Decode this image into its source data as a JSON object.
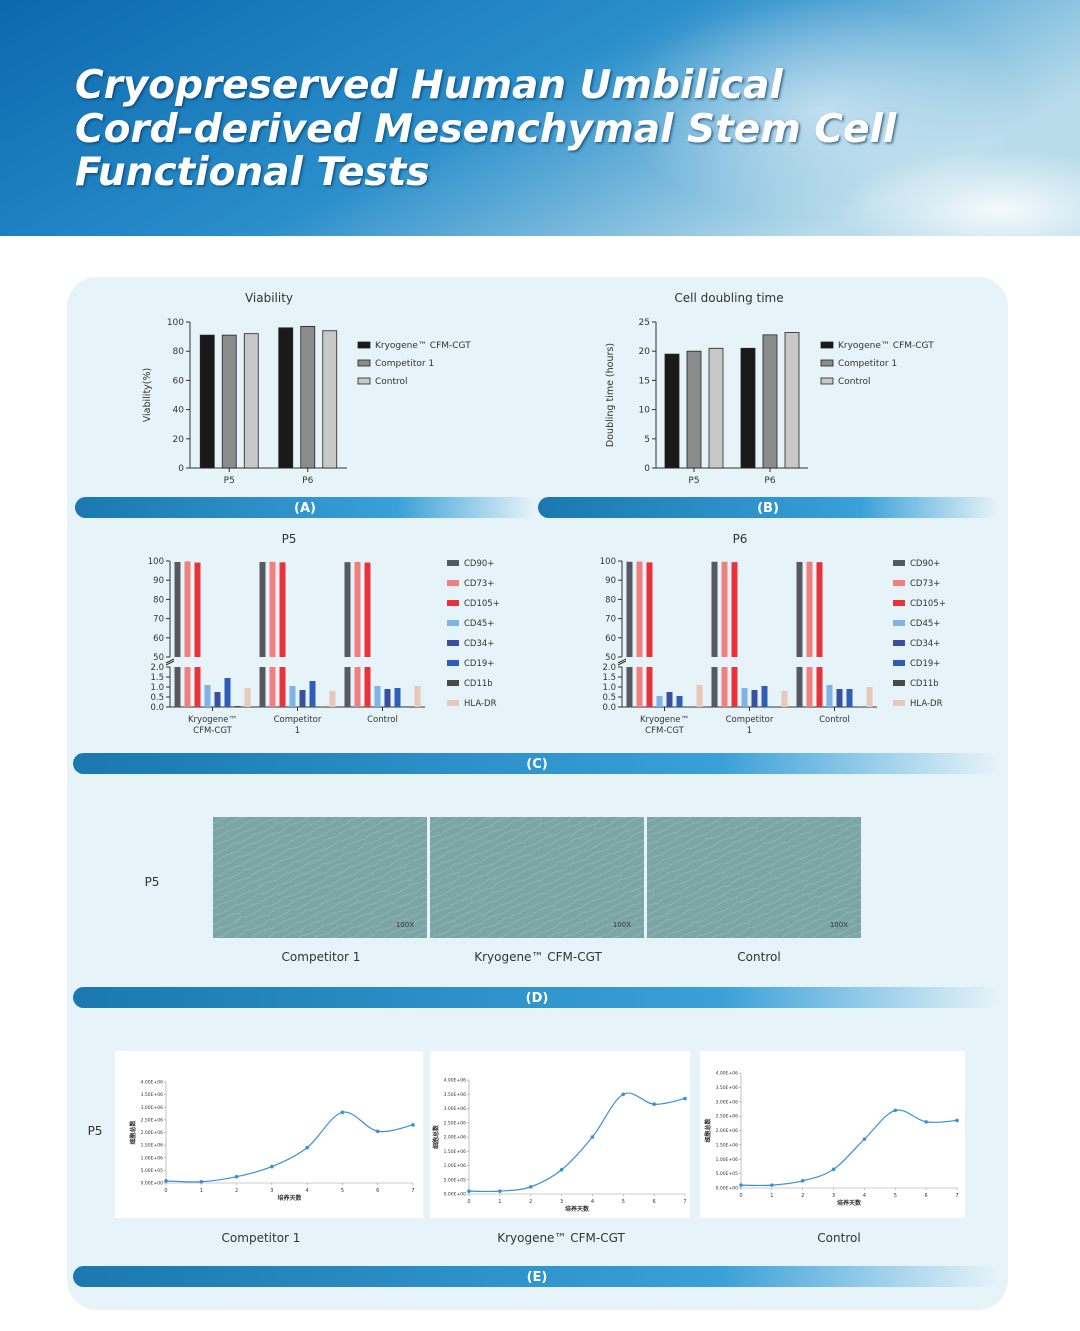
{
  "header": {
    "title_lines": [
      "Cryopreserved Human Umbilical",
      "Cord-derived Mesenchymal Stem Cell",
      "Functional Tests"
    ]
  },
  "panel_labels": [
    "(A)",
    "(B)",
    "(C)",
    "(D)",
    "(E)"
  ],
  "micrographs": {
    "row_label": "P5",
    "images": [
      {
        "caption": "Competitor 1",
        "magnification": "100X"
      },
      {
        "caption": "Kryogene™ CFM-CGT",
        "magnification": "100X"
      },
      {
        "caption": "Control",
        "magnification": "100X"
      }
    ]
  },
  "growth_curves": {
    "row_label": "P5"
  },
  "chart_data": [
    {
      "type": "bar",
      "title": "Viability",
      "y_label": "Viability(%)",
      "categories": [
        "P5",
        "P6"
      ],
      "series": [
        {
          "name": "Kryogene™ CFM-CGT",
          "color": "#1a1a1a",
          "values": [
            91,
            96
          ]
        },
        {
          "name": "Competitor 1",
          "color": "#8c8c8c",
          "values": [
            91,
            97
          ]
        },
        {
          "name": "Control",
          "color": "#c8c8c8",
          "values": [
            92,
            94
          ]
        }
      ],
      "ylim": [
        0,
        100
      ],
      "yticks": [
        0,
        20,
        40,
        60,
        80,
        100
      ]
    },
    {
      "type": "bar",
      "title": "Cell doubling time",
      "y_label": "Doubling time (hours)",
      "categories": [
        "P5",
        "P6"
      ],
      "series": [
        {
          "name": "Kryogene™ CFM-CGT",
          "color": "#1a1a1a",
          "values": [
            19.5,
            20.5
          ]
        },
        {
          "name": "Competitor 1",
          "color": "#8c8c8c",
          "values": [
            20,
            22.8
          ]
        },
        {
          "name": "Control",
          "color": "#c8c8c8",
          "values": [
            20.5,
            23.2
          ]
        }
      ],
      "ylim": [
        0,
        25
      ],
      "yticks": [
        0,
        5,
        10,
        15,
        20,
        25
      ]
    },
    {
      "type": "bar",
      "title": "P5",
      "categories": [
        "Kryogene™ CFM-CGT",
        "Competitor 1",
        "Control"
      ],
      "series": [
        {
          "name": "CD90+",
          "color": "#555a60",
          "values": [
            99.5,
            99.5,
            99.4
          ]
        },
        {
          "name": "CD73+",
          "color": "#f08080",
          "values": [
            99.8,
            99.6,
            99.5
          ]
        },
        {
          "name": "CD105+",
          "color": "#e8333a",
          "values": [
            99.2,
            99.3,
            99.2
          ]
        },
        {
          "name": "CD45+",
          "color": "#7fb2e5",
          "values": [
            1.1,
            1.05,
            1.05
          ]
        },
        {
          "name": "CD34+",
          "color": "#3a4fa0",
          "values": [
            0.75,
            0.85,
            0.9
          ]
        },
        {
          "name": "CD19+",
          "color": "#2f5db8",
          "values": [
            1.45,
            1.3,
            0.95
          ]
        },
        {
          "name": "CD11b",
          "color": "#4a4a4a",
          "values": [
            0.05,
            0.02,
            0.03
          ]
        },
        {
          "name": "HLA-DR",
          "color": "#e8c8b8",
          "values": [
            0.95,
            0.8,
            1.05
          ]
        }
      ],
      "ylim": [
        0,
        100
      ],
      "axis_break": [
        2,
        50
      ],
      "yticks": [
        {
          "value": 0,
          "label": "0.0"
        },
        0.5,
        {
          "value": 1,
          "label": "1.0"
        },
        1.5,
        {
          "value": 2,
          "label": "2.0"
        },
        50,
        60,
        70,
        80,
        90,
        100
      ]
    },
    {
      "type": "bar",
      "title": "P6",
      "categories": [
        "Kryogene™ CFM-CGT",
        "Competitor 1",
        "Control"
      ],
      "series": [
        {
          "name": "CD90+",
          "color": "#555a60",
          "values": [
            99.6,
            99.6,
            99.5
          ]
        },
        {
          "name": "CD73+",
          "color": "#f08080",
          "values": [
            99.7,
            99.6,
            99.6
          ]
        },
        {
          "name": "CD105+",
          "color": "#e8333a",
          "values": [
            99.3,
            99.4,
            99.4
          ]
        },
        {
          "name": "CD45+",
          "color": "#7fb2e5",
          "values": [
            0.55,
            0.95,
            1.1
          ]
        },
        {
          "name": "CD34+",
          "color": "#3a4fa0",
          "values": [
            0.75,
            0.85,
            0.9
          ]
        },
        {
          "name": "CD19+",
          "color": "#2f5db8",
          "values": [
            0.55,
            1.05,
            0.9
          ]
        },
        {
          "name": "CD11b",
          "color": "#4a4a4a",
          "values": [
            0.02,
            0.02,
            0.02
          ]
        },
        {
          "name": "HLA-DR",
          "color": "#e8c8b8",
          "values": [
            1.1,
            0.8,
            1.0
          ]
        }
      ],
      "ylim": [
        0,
        100
      ],
      "axis_break": [
        2,
        50
      ],
      "yticks": [
        {
          "value": 0,
          "label": "0.0"
        },
        0.5,
        {
          "value": 1,
          "label": "1.0"
        },
        1.5,
        {
          "value": 2,
          "label": "2.0"
        },
        50,
        60,
        70,
        80,
        90,
        100
      ]
    },
    {
      "type": "line",
      "caption": "Competitor 1",
      "y_label": "细胞总数",
      "x_label": "培养天数",
      "color": "#3a8fd8",
      "x": [
        0,
        1,
        2,
        3,
        4,
        5,
        6,
        7
      ],
      "values": [
        80000,
        50000,
        250000,
        650000,
        1400000,
        2800000,
        2050000,
        2300000
      ],
      "xlim": [
        0,
        7
      ],
      "xticks": [
        0,
        1,
        2,
        3,
        4,
        5,
        6,
        7
      ],
      "ylim": [
        0,
        4000000
      ],
      "yticks": [
        {
          "value": 0,
          "label": "0.00E+00"
        },
        {
          "value": 500000,
          "label": "5.00E+05"
        },
        {
          "value": 1000000,
          "label": "1.00E+06"
        },
        {
          "value": 1500000,
          "label": "1.50E+06"
        },
        {
          "value": 2000000,
          "label": "2.00E+06"
        },
        {
          "value": 2500000,
          "label": "2.50E+06"
        },
        {
          "value": 3000000,
          "label": "3.00E+06"
        },
        {
          "value": 3500000,
          "label": "3.50E+06"
        },
        {
          "value": 4000000,
          "label": "4.00E+06"
        }
      ]
    },
    {
      "type": "line",
      "caption": "Kryogene™ CFM-CGT",
      "y_label": "细胞总数",
      "x_label": "培养天数",
      "color": "#3a8fd8",
      "x": [
        0,
        1,
        2,
        3,
        4,
        5,
        6,
        7
      ],
      "values": [
        100000,
        100000,
        250000,
        850000,
        2000000,
        3500000,
        3150000,
        3350000
      ],
      "xlim": [
        0,
        7
      ],
      "xticks": [
        0,
        1,
        2,
        3,
        4,
        5,
        6,
        7
      ],
      "ylim": [
        0,
        4000000
      ],
      "yticks": [
        {
          "value": 0,
          "label": "0.00E+00"
        },
        {
          "value": 500000,
          "label": "5.00E+05"
        },
        {
          "value": 1000000,
          "label": "1.00E+06"
        },
        {
          "value": 1500000,
          "label": "1.50E+06"
        },
        {
          "value": 2000000,
          "label": "2.00E+06"
        },
        {
          "value": 2500000,
          "label": "2.50E+06"
        },
        {
          "value": 3000000,
          "label": "3.00E+06"
        },
        {
          "value": 3500000,
          "label": "3.50E+06"
        },
        {
          "value": 4000000,
          "label": "4.00E+06"
        }
      ]
    },
    {
      "type": "line",
      "caption": "Control",
      "y_label": "细胞总数",
      "x_label": "培养天数",
      "color": "#3a8fd8",
      "x": [
        0,
        1,
        2,
        3,
        4,
        5,
        6,
        7
      ],
      "values": [
        100000,
        100000,
        250000,
        650000,
        1700000,
        2700000,
        2300000,
        2350000
      ],
      "xlim": [
        0,
        7
      ],
      "xticks": [
        0,
        1,
        2,
        3,
        4,
        5,
        6,
        7
      ],
      "ylim": [
        0,
        4000000
      ],
      "yticks": [
        {
          "value": 0,
          "label": "0.00E+00"
        },
        {
          "value": 500000,
          "label": "5.00E+05"
        },
        {
          "value": 1000000,
          "label": "1.00E+06"
        },
        {
          "value": 1500000,
          "label": "1.50E+06"
        },
        {
          "value": 2000000,
          "label": "2.00E+06"
        },
        {
          "value": 2500000,
          "label": "2.50E+06"
        },
        {
          "value": 3000000,
          "label": "3.00E+06"
        },
        {
          "value": 3500000,
          "label": "3.50E+06"
        },
        {
          "value": 4000000,
          "label": "4.00E+06"
        }
      ]
    }
  ]
}
